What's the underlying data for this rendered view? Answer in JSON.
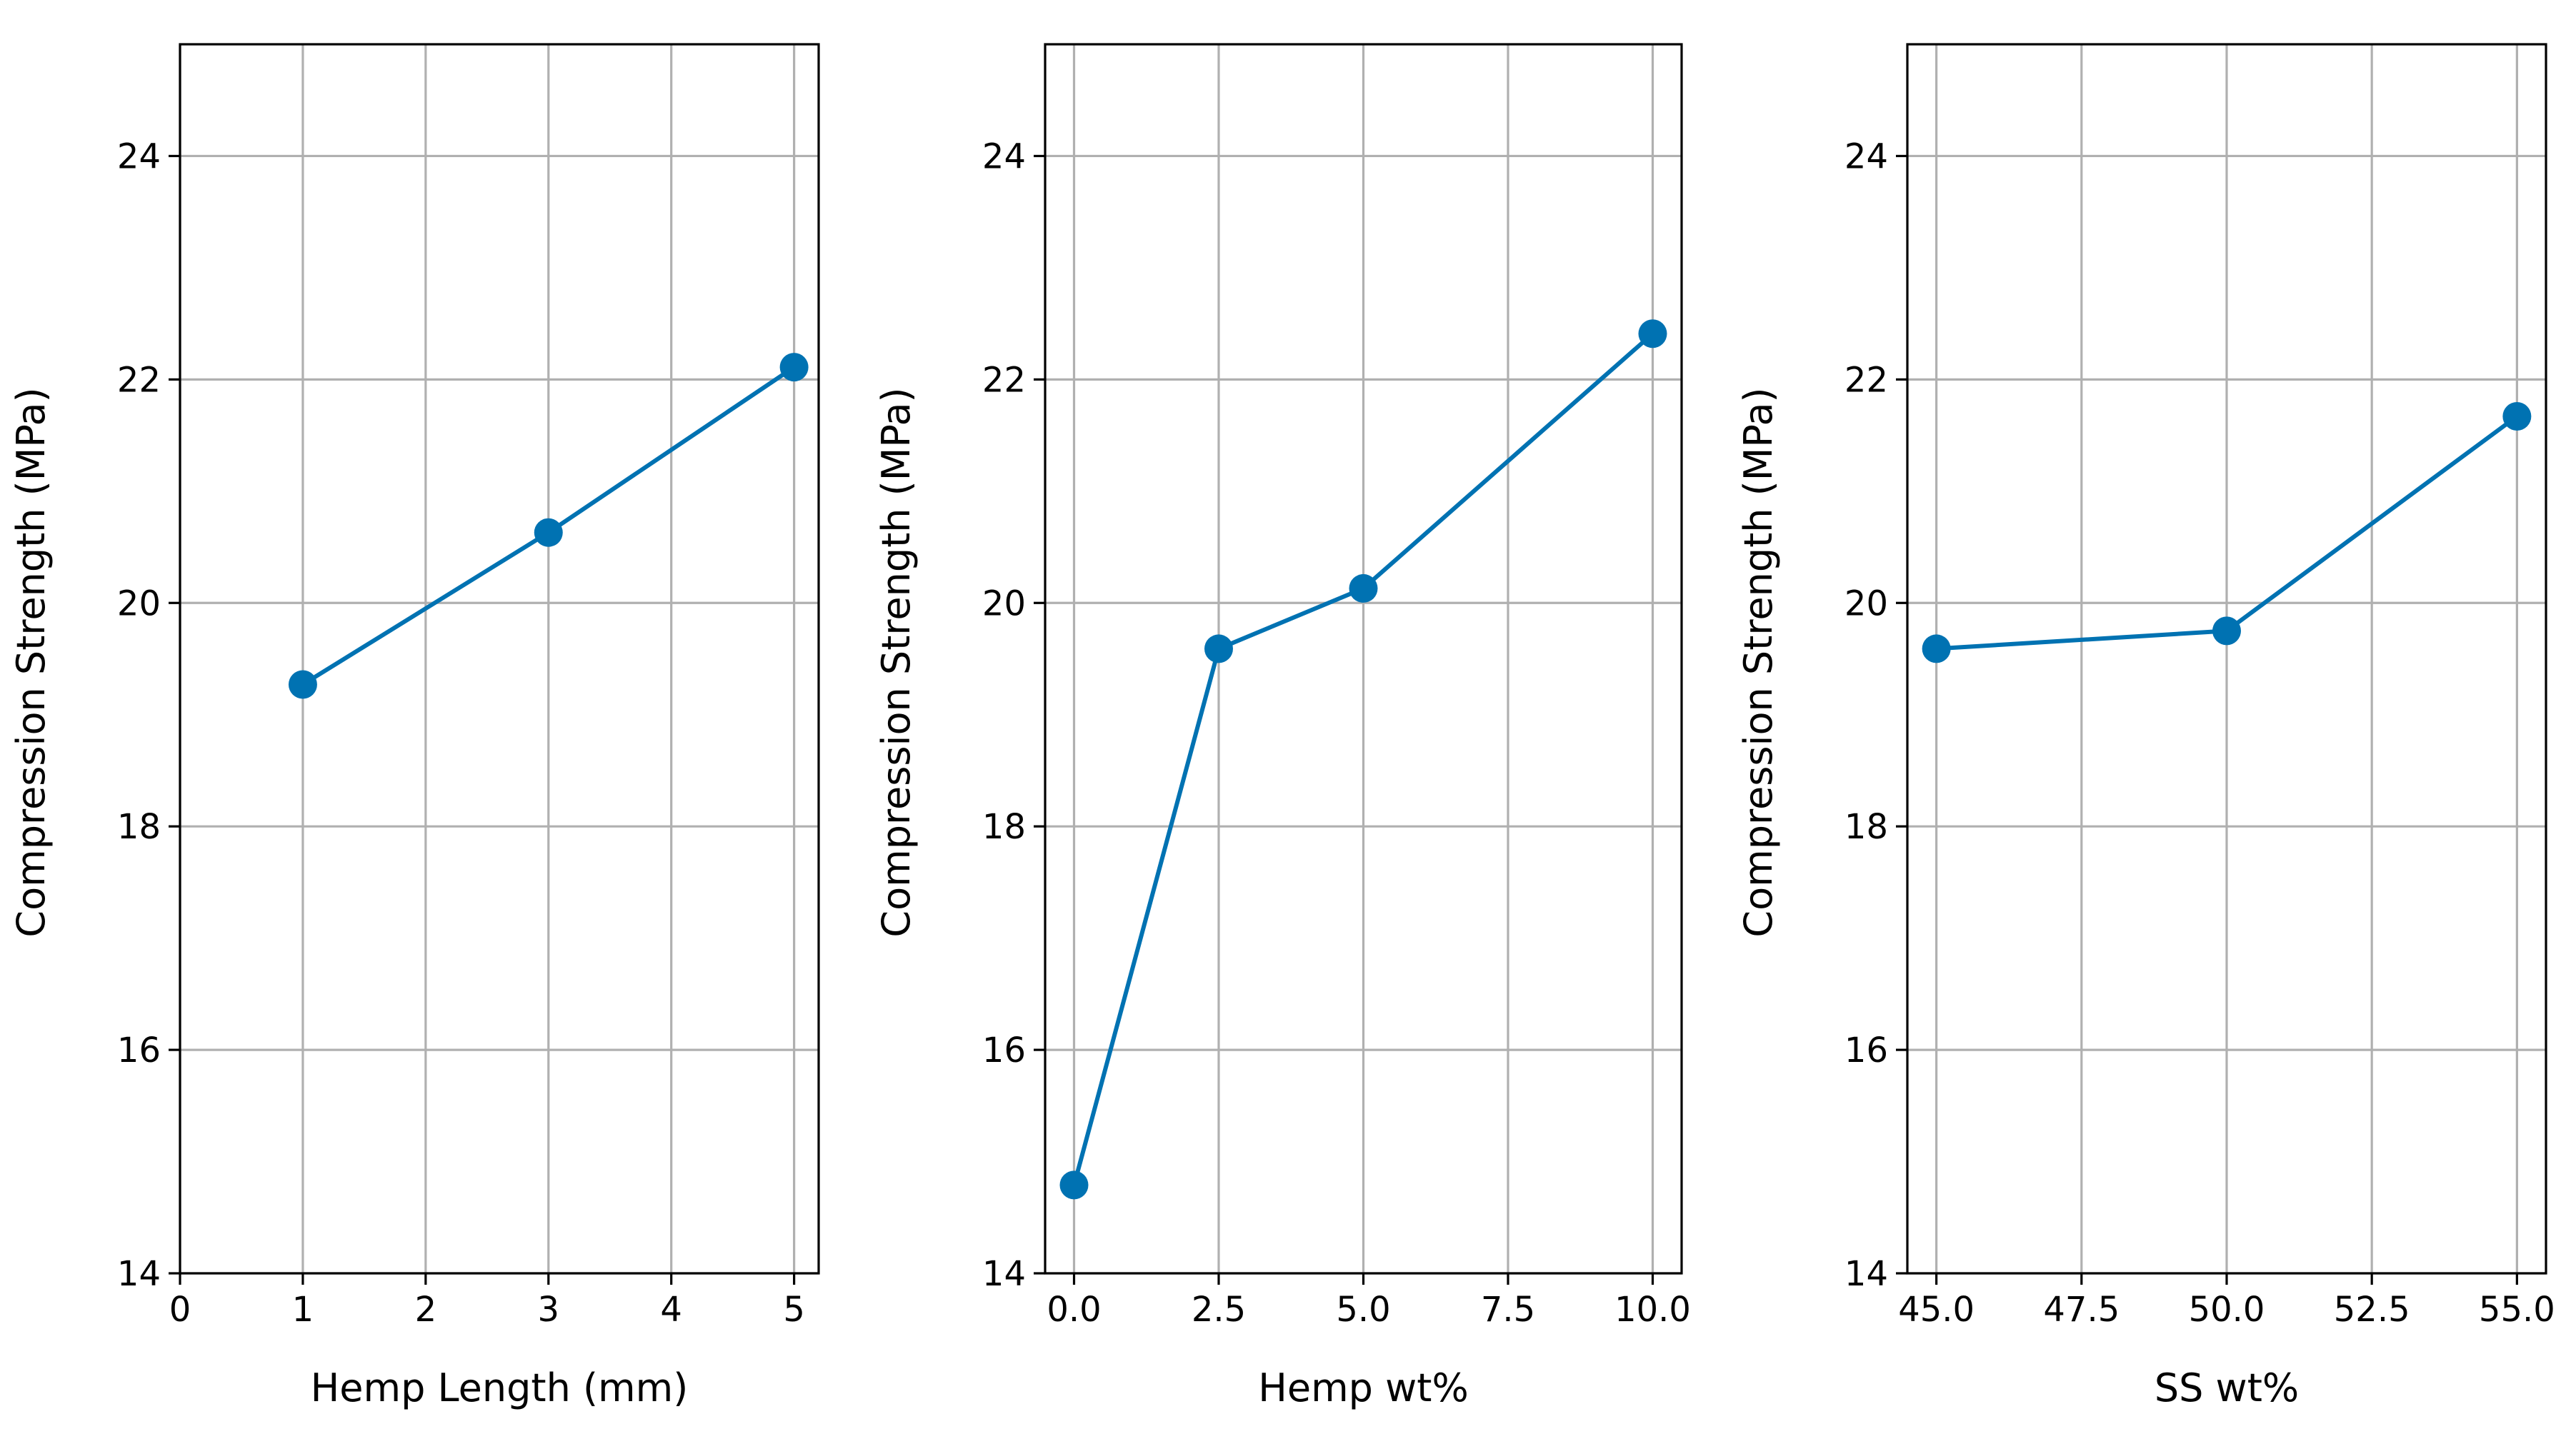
{
  "chart_data": [
    {
      "type": "line",
      "title": "",
      "xlabel": "Hemp Length (mm)",
      "ylabel": "Compression Strength (MPa)",
      "x": [
        1,
        3,
        5
      ],
      "values": [
        19.27,
        20.63,
        22.11
      ],
      "xlim": [
        0,
        5.2
      ],
      "ylim": [
        14,
        25
      ],
      "xticks": [
        0,
        1,
        2,
        3,
        4,
        5
      ],
      "xtick_labels": [
        "0",
        "1",
        "2",
        "3",
        "4",
        "5"
      ],
      "yticks": [
        14,
        16,
        18,
        20,
        22,
        24
      ],
      "ytick_labels": [
        "14",
        "16",
        "18",
        "20",
        "22",
        "24"
      ],
      "grid": true
    },
    {
      "type": "line",
      "title": "",
      "xlabel": "Hemp wt%",
      "ylabel": "Compression Strength (MPa)",
      "x": [
        0,
        2.5,
        5,
        10
      ],
      "values": [
        14.79,
        19.59,
        20.13,
        22.41
      ],
      "xlim": [
        -0.5,
        10.5
      ],
      "ylim": [
        14,
        25
      ],
      "xticks": [
        0,
        2.5,
        5,
        7.5,
        10
      ],
      "xtick_labels": [
        "0.0",
        "2.5",
        "5.0",
        "7.5",
        "10.0"
      ],
      "yticks": [
        14,
        16,
        18,
        20,
        22,
        24
      ],
      "ytick_labels": [
        "14",
        "16",
        "18",
        "20",
        "22",
        "24"
      ],
      "grid": true
    },
    {
      "type": "line",
      "title": "",
      "xlabel": "SS wt%",
      "ylabel": "Compression Strength (MPa)",
      "x": [
        45,
        50,
        55
      ],
      "values": [
        19.59,
        19.75,
        21.67
      ],
      "xlim": [
        44.5,
        55.5
      ],
      "ylim": [
        14,
        25
      ],
      "xticks": [
        45,
        47.5,
        50,
        52.5,
        55
      ],
      "xtick_labels": [
        "45.0",
        "47.5",
        "50.0",
        "52.5",
        "55.0"
      ],
      "yticks": [
        14,
        16,
        18,
        20,
        22,
        24
      ],
      "ytick_labels": [
        "14",
        "16",
        "18",
        "20",
        "22",
        "24"
      ],
      "grid": true
    }
  ],
  "colors": {
    "series": "#0072B2",
    "grid": "#b0b0b0",
    "axes": "#000000"
  }
}
